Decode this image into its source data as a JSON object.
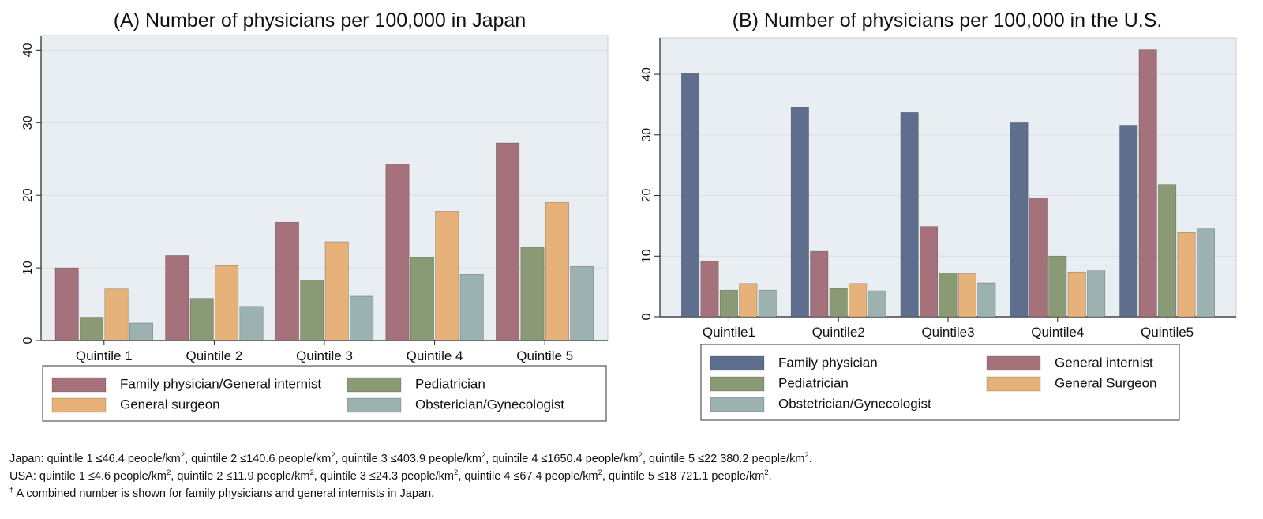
{
  "colors": {
    "family": "#5e6f8d",
    "family_internist": "#a5727c",
    "internist": "#a5727c",
    "pediatrician": "#8a9a74",
    "surgeon": "#e6b279",
    "obgyn": "#9bb2b0",
    "plot_bg": "#e9eef2",
    "grid": "#d8dee3"
  },
  "chart_data": [
    {
      "type": "bar",
      "title": "(A) Number of physicians per 100,000 in Japan",
      "xlabel": "",
      "ylabel": "",
      "ylim": [
        0,
        42
      ],
      "yticks": [
        0,
        10,
        20,
        30,
        40
      ],
      "grid": true,
      "legend_position": "bottom",
      "categories": [
        "Quintile 1",
        "Quintile 2",
        "Quintile 3",
        "Quintile 4",
        "Quintile 5"
      ],
      "series": [
        {
          "name": "Family physician/General internist",
          "key": "family_internist",
          "values": [
            10.0,
            11.7,
            16.3,
            24.3,
            27.2
          ]
        },
        {
          "name": "Pediatrician",
          "key": "pediatrician",
          "values": [
            3.2,
            5.8,
            8.3,
            11.5,
            12.8
          ]
        },
        {
          "name": "General surgeon",
          "key": "surgeon",
          "values": [
            7.1,
            10.3,
            13.6,
            17.8,
            19.0
          ]
        },
        {
          "name": "Obsterician/Gynecologist",
          "key": "obgyn",
          "values": [
            2.4,
            4.7,
            6.1,
            9.1,
            10.2
          ]
        }
      ]
    },
    {
      "type": "bar",
      "title": "(B) Number of physicians per 100,000 in the U.S.",
      "xlabel": "",
      "ylabel": "",
      "ylim": [
        0,
        46
      ],
      "yticks": [
        0,
        10,
        20,
        30,
        40
      ],
      "grid": true,
      "legend_position": "bottom",
      "categories": [
        "Quintile1",
        "Quintile2",
        "Quintile3",
        "Quintile4",
        "Quintile5"
      ],
      "series": [
        {
          "name": "Family physician",
          "key": "family",
          "values": [
            40.1,
            34.5,
            33.7,
            32.0,
            31.6
          ]
        },
        {
          "name": "General internist",
          "key": "internist",
          "values": [
            9.1,
            10.8,
            14.9,
            19.5,
            44.1
          ]
        },
        {
          "name": "Pediatrician",
          "key": "pediatrician",
          "values": [
            4.4,
            4.7,
            7.2,
            10.0,
            21.8
          ]
        },
        {
          "name": "General Surgeon",
          "key": "surgeon",
          "values": [
            5.5,
            5.5,
            7.1,
            7.4,
            13.9
          ]
        },
        {
          "name": "Obstetrician/Gynecologist",
          "key": "obgyn",
          "values": [
            4.4,
            4.3,
            5.6,
            7.6,
            14.5
          ]
        }
      ]
    }
  ],
  "footnotes": {
    "japan": {
      "prefix": "Japan: ",
      "items": [
        {
          "label": "quintile 1 ≤46.4 people/km",
          "sup": "2"
        },
        {
          "label": ", quintile 2 ≤140.6 people/km",
          "sup": "2"
        },
        {
          "label": ", quintile 3 ≤403.9 people/km",
          "sup": "2"
        },
        {
          "label": ", quintile 4 ≤1650.4 people/km",
          "sup": "2"
        },
        {
          "label": ", quintile 5 ≤22 380.2 people/km",
          "sup": "2"
        }
      ],
      "suffix": "."
    },
    "usa": {
      "prefix": "USA: ",
      "items": [
        {
          "label": "quintile 1 ≤4.6 people/km",
          "sup": "2"
        },
        {
          "label": ", quintile 2 ≤11.9 people/km",
          "sup": "2"
        },
        {
          "label": ", quintile 3 ≤24.3 people/km",
          "sup": "2"
        },
        {
          "label": ", quintile 4 ≤67.4 people/km",
          "sup": "2"
        },
        {
          "label": ", quintile 5 ≤18 721.1 people/km",
          "sup": "2"
        }
      ],
      "suffix": "."
    },
    "dagger": {
      "mark": "†",
      "text": " A combined number is shown for family physicians and general internists in Japan."
    }
  }
}
